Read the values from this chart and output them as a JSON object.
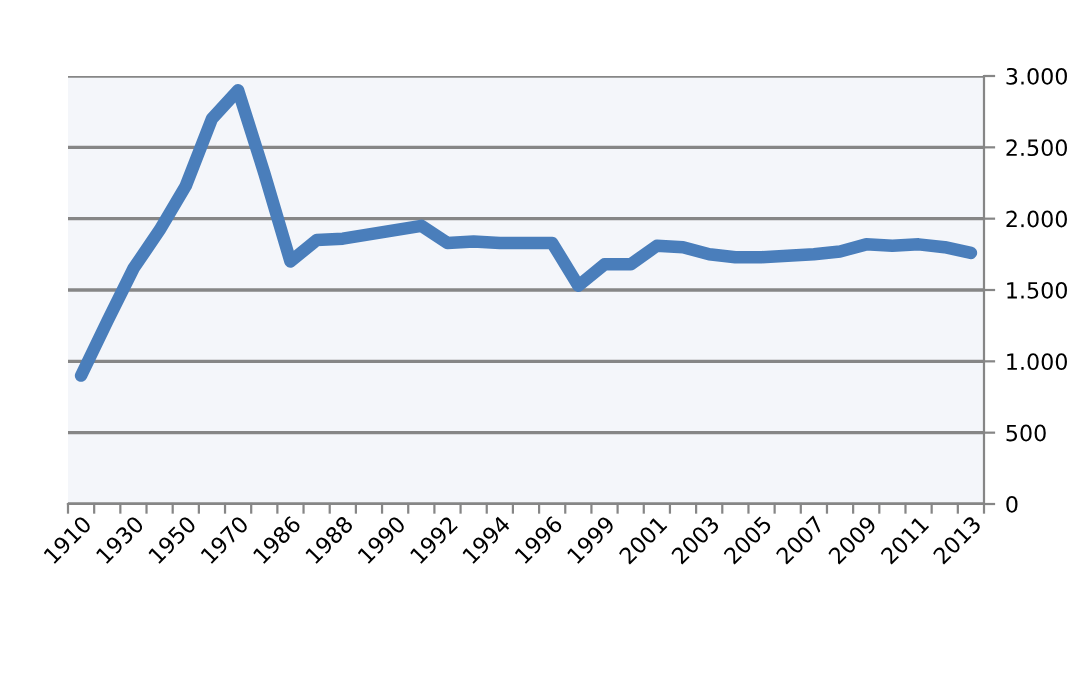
{
  "chart_data": {
    "type": "line",
    "categories": [
      "1910",
      null,
      "1930",
      null,
      "1950",
      null,
      "1970",
      null,
      "1986",
      null,
      "1988",
      null,
      "1990",
      null,
      "1992",
      null,
      "1994",
      null,
      "1996",
      null,
      "1999",
      null,
      "2001",
      null,
      "2003",
      null,
      "2005",
      null,
      "2007",
      null,
      "2009",
      null,
      "2011",
      null,
      "2013"
    ],
    "series": [
      {
        "color": "#4a7ebb",
        "values": [
          900,
          1280,
          1650,
          1920,
          2230,
          2700,
          2900,
          2320,
          1700,
          1850,
          1860,
          1890,
          1920,
          1950,
          1830,
          1840,
          1830,
          1830,
          1830,
          1530,
          1680,
          1680,
          1810,
          1800,
          1750,
          1730,
          1730,
          1740,
          1750,
          1770,
          1820,
          1810,
          1820,
          1800,
          1760
        ]
      }
    ],
    "ylim": [
      0,
      3000
    ],
    "yticks": [
      0,
      500,
      {
        "value": 1000,
        "label": "1.000"
      },
      {
        "value": 1500,
        "label": "1.500"
      },
      {
        "value": 2000,
        "label": "2.000"
      },
      {
        "value": 2500,
        "label": "2.500"
      },
      {
        "value": 3000,
        "label": "3.000"
      }
    ],
    "grid": "y",
    "legend": false,
    "marker": "none",
    "line_style": "solid"
  }
}
